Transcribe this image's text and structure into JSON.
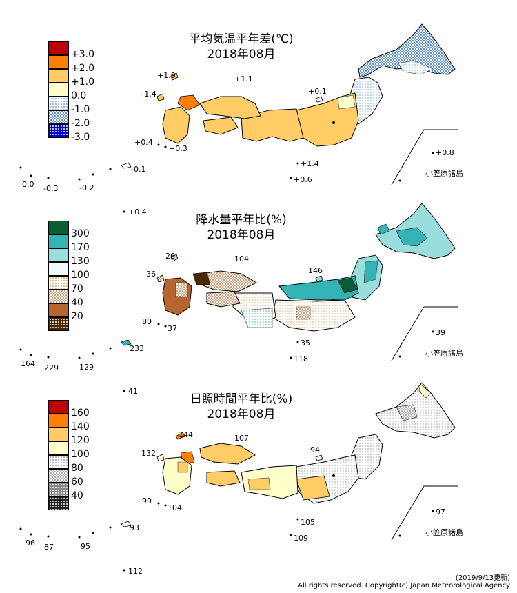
{
  "panels": [
    {
      "id": "temperature",
      "title_line1": "平均気温平年差(℃)",
      "title_line2": "2018年08月",
      "legend": [
        {
          "label": "+3.0",
          "color": "#c00000",
          "pattern": "solid"
        },
        {
          "label": "+2.0",
          "color": "#ff8000",
          "pattern": "solid"
        },
        {
          "label": "+1.0",
          "color": "#ffcc66",
          "pattern": "solid"
        },
        {
          "label": "0.0",
          "color": "#ffffcc",
          "pattern": "solid"
        },
        {
          "label": "-1.0",
          "color": "#ffffff",
          "pattern": "dots-light-blue"
        },
        {
          "label": "-2.0",
          "color": "#ffffff",
          "pattern": "checker-blue"
        },
        {
          "label": "-3.0",
          "color": "#0000cc",
          "pattern": "dots-white"
        }
      ],
      "station_values": [
        "+1.9",
        "+1.1",
        "+1.4",
        "+0.1",
        "+0.4",
        "+0.3",
        "+1.4",
        "+0.6",
        "+0.8",
        "-0.1",
        "0.0",
        "-0.3",
        "-0.2"
      ],
      "ogasawara_label": "小笠原諸島"
    },
    {
      "id": "precipitation",
      "title_line1": "降水量平年比(%)",
      "title_line2": "2018年08月",
      "legend": [
        {
          "label": "300",
          "color": "#0b5d36",
          "pattern": "solid"
        },
        {
          "label": "170",
          "color": "#33b3b3",
          "pattern": "solid"
        },
        {
          "label": "130",
          "color": "#99dddd",
          "pattern": "solid"
        },
        {
          "label": "100",
          "color": "#eefafa",
          "pattern": "solid"
        },
        {
          "label": "70",
          "color": "#ffffff",
          "pattern": "dots-orange"
        },
        {
          "label": "40",
          "color": "#ffffff",
          "pattern": "checker-brown"
        },
        {
          "label": "20",
          "color": "#b5652d",
          "pattern": "solid"
        },
        {
          "label": "",
          "color": "#4a2800",
          "pattern": "dots-white"
        }
      ],
      "station_values": [
        "26",
        "104",
        "36",
        "146",
        "80",
        "37",
        "35",
        "118",
        "39",
        "164",
        "229",
        "129",
        "233",
        "+0.4"
      ],
      "ogasawara_label": "小笠原諸島"
    },
    {
      "id": "sunshine",
      "title_line1": "日照時間平年比(%)",
      "title_line2": "2018年08月",
      "legend": [
        {
          "label": "160",
          "color": "#c00000",
          "pattern": "solid"
        },
        {
          "label": "140",
          "color": "#ff8000",
          "pattern": "solid"
        },
        {
          "label": "120",
          "color": "#ffcc66",
          "pattern": "solid"
        },
        {
          "label": "100",
          "color": "#ffffcc",
          "pattern": "solid"
        },
        {
          "label": "80",
          "color": "#ffffff",
          "pattern": "dots-gray"
        },
        {
          "label": "60",
          "color": "#ffffff",
          "pattern": "checker-gray"
        },
        {
          "label": "40",
          "color": "#888888",
          "pattern": "dots-white"
        },
        {
          "label": "",
          "color": "#222222",
          "pattern": "dots-white"
        }
      ],
      "station_values": [
        "144",
        "107",
        "132",
        "94",
        "99",
        "104",
        "105",
        "109",
        "97",
        "96",
        "87",
        "95",
        "93",
        "41",
        "112"
      ],
      "ogasawara_label": "小笠原諸島"
    }
  ],
  "footer": {
    "updated": "(2019/9/13更新)",
    "copyright": "All rights reserved. Copyright(c) Japan Meteorological Agency"
  }
}
